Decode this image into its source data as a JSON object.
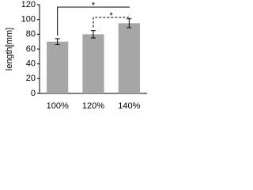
{
  "chart_data": {
    "type": "bar",
    "y_label": "length[mm]",
    "categories": [
      "100%",
      "120%",
      "140%"
    ],
    "values": [
      70,
      80,
      95
    ],
    "errors": [
      4,
      5,
      6
    ],
    "color": "#a6a6a6",
    "ylim": [
      0,
      120
    ],
    "yticks": [
      0,
      20,
      40,
      60,
      80,
      100,
      120
    ],
    "brackets": [
      {
        "label": "*",
        "categories": [
          "100%",
          "140%"
        ]
      },
      {
        "label": "*",
        "categories": [
          "120%",
          "140%"
        ]
      }
    ]
  }
}
